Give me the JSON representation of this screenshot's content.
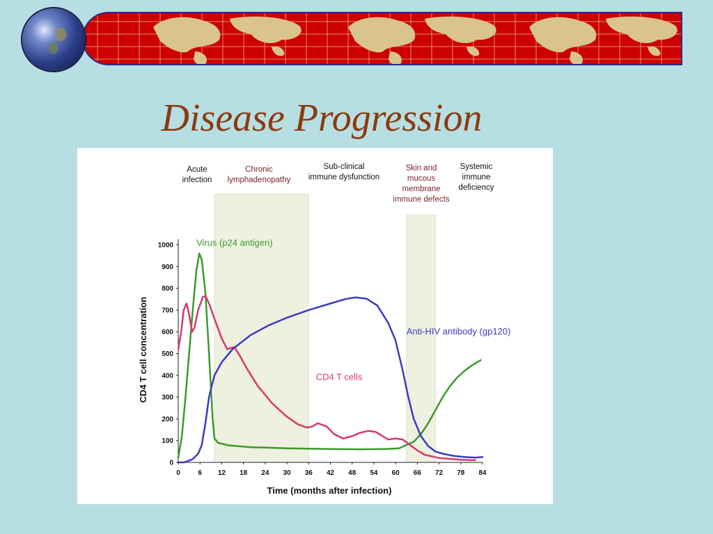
{
  "slide": {
    "title": "Disease Progression",
    "colors": {
      "background": "#b7dfe3",
      "banner": "#cc0000",
      "title": "#8b3a10"
    },
    "icons": [
      "globe-icon",
      "world-map-banner"
    ]
  },
  "chart_data": {
    "type": "line",
    "xlabel": "Time (months after infection)",
    "ylabel": "CD4 T cell concentration",
    "xlim": [
      0,
      84
    ],
    "ylim": [
      0,
      1000
    ],
    "xticks": [
      0,
      6,
      12,
      18,
      24,
      30,
      36,
      42,
      48,
      54,
      60,
      66,
      72,
      78,
      84
    ],
    "yticks": [
      0,
      100,
      200,
      300,
      400,
      500,
      600,
      700,
      800,
      900,
      1000
    ],
    "phases": [
      {
        "lines": [
          "Acute",
          "infection"
        ],
        "color": "#111111"
      },
      {
        "lines": [
          "Chronic",
          "lymphadenopathy"
        ],
        "color": "#7a1f2a",
        "band": [
          10,
          36
        ]
      },
      {
        "lines": [
          "Sub-clinical",
          "immune dysfunction"
        ],
        "color": "#111111"
      },
      {
        "lines": [
          "Skin and",
          "mucous",
          "membrane",
          "immune defects"
        ],
        "color": "#7a1f2a",
        "band": [
          63,
          71
        ]
      },
      {
        "lines": [
          "Systemic",
          "immune",
          "deficiency"
        ],
        "color": "#111111"
      }
    ],
    "band_color": "#eef0e0",
    "series": [
      {
        "name": "Virus (p24 antigen)",
        "color": "#3a9a2a",
        "x": [
          0,
          1,
          2,
          3,
          4,
          5,
          5.8,
          6.5,
          7.5,
          8.5,
          9.5,
          10,
          11,
          14,
          20,
          30,
          40,
          50,
          58,
          61,
          63,
          65,
          67,
          69,
          71,
          73,
          75,
          77,
          79,
          81,
          83.5
        ],
        "y": [
          20,
          120,
          300,
          500,
          700,
          880,
          960,
          930,
          780,
          500,
          200,
          110,
          90,
          78,
          70,
          65,
          62,
          60,
          62,
          65,
          80,
          95,
          130,
          180,
          240,
          300,
          350,
          390,
          420,
          445,
          470
        ]
      },
      {
        "name": "CD4 T cells",
        "color": "#d43a6a",
        "x": [
          0,
          0.8,
          1.5,
          2.3,
          3,
          3.8,
          4.5,
          5.5,
          6.8,
          7.5,
          8.5,
          10,
          12,
          13.5,
          15.5,
          17,
          19,
          22,
          26,
          30,
          33,
          35.5,
          37,
          38.5,
          41,
          43,
          45.5,
          48,
          50,
          52.5,
          54.5,
          56.5,
          58,
          60,
          62,
          64,
          66,
          68,
          72,
          78,
          82
        ],
        "y": [
          520,
          600,
          700,
          730,
          680,
          600,
          620,
          700,
          760,
          765,
          730,
          660,
          570,
          520,
          530,
          490,
          430,
          350,
          270,
          210,
          175,
          160,
          165,
          180,
          165,
          130,
          110,
          120,
          135,
          145,
          140,
          120,
          105,
          110,
          105,
          80,
          55,
          35,
          20,
          12,
          10
        ]
      },
      {
        "name": "Anti-HIV antibody (gp120)",
        "color": "#3a3ac4",
        "x": [
          0,
          1.5,
          2.5,
          4,
          5.5,
          6.5,
          7.5,
          8.5,
          10,
          12,
          15,
          20,
          25,
          30,
          36,
          42,
          46,
          49,
          52,
          55,
          58,
          60,
          62,
          63.5,
          65,
          67,
          69,
          71,
          73,
          76,
          79,
          82,
          84
        ],
        "y": [
          0,
          0,
          5,
          15,
          40,
          80,
          180,
          300,
          400,
          460,
          520,
          585,
          630,
          665,
          700,
          730,
          750,
          758,
          752,
          720,
          640,
          560,
          420,
          300,
          200,
          120,
          75,
          50,
          40,
          30,
          25,
          22,
          25
        ]
      }
    ],
    "series_labels": [
      {
        "text": "Virus (p24 antigen)",
        "x": 5,
        "y": 995
      },
      {
        "text": "CD4 T cells",
        "x": 38,
        "y": 378
      },
      {
        "text": "Anti-HIV antibody (gp120)",
        "x": 63,
        "y": 588
      }
    ]
  }
}
